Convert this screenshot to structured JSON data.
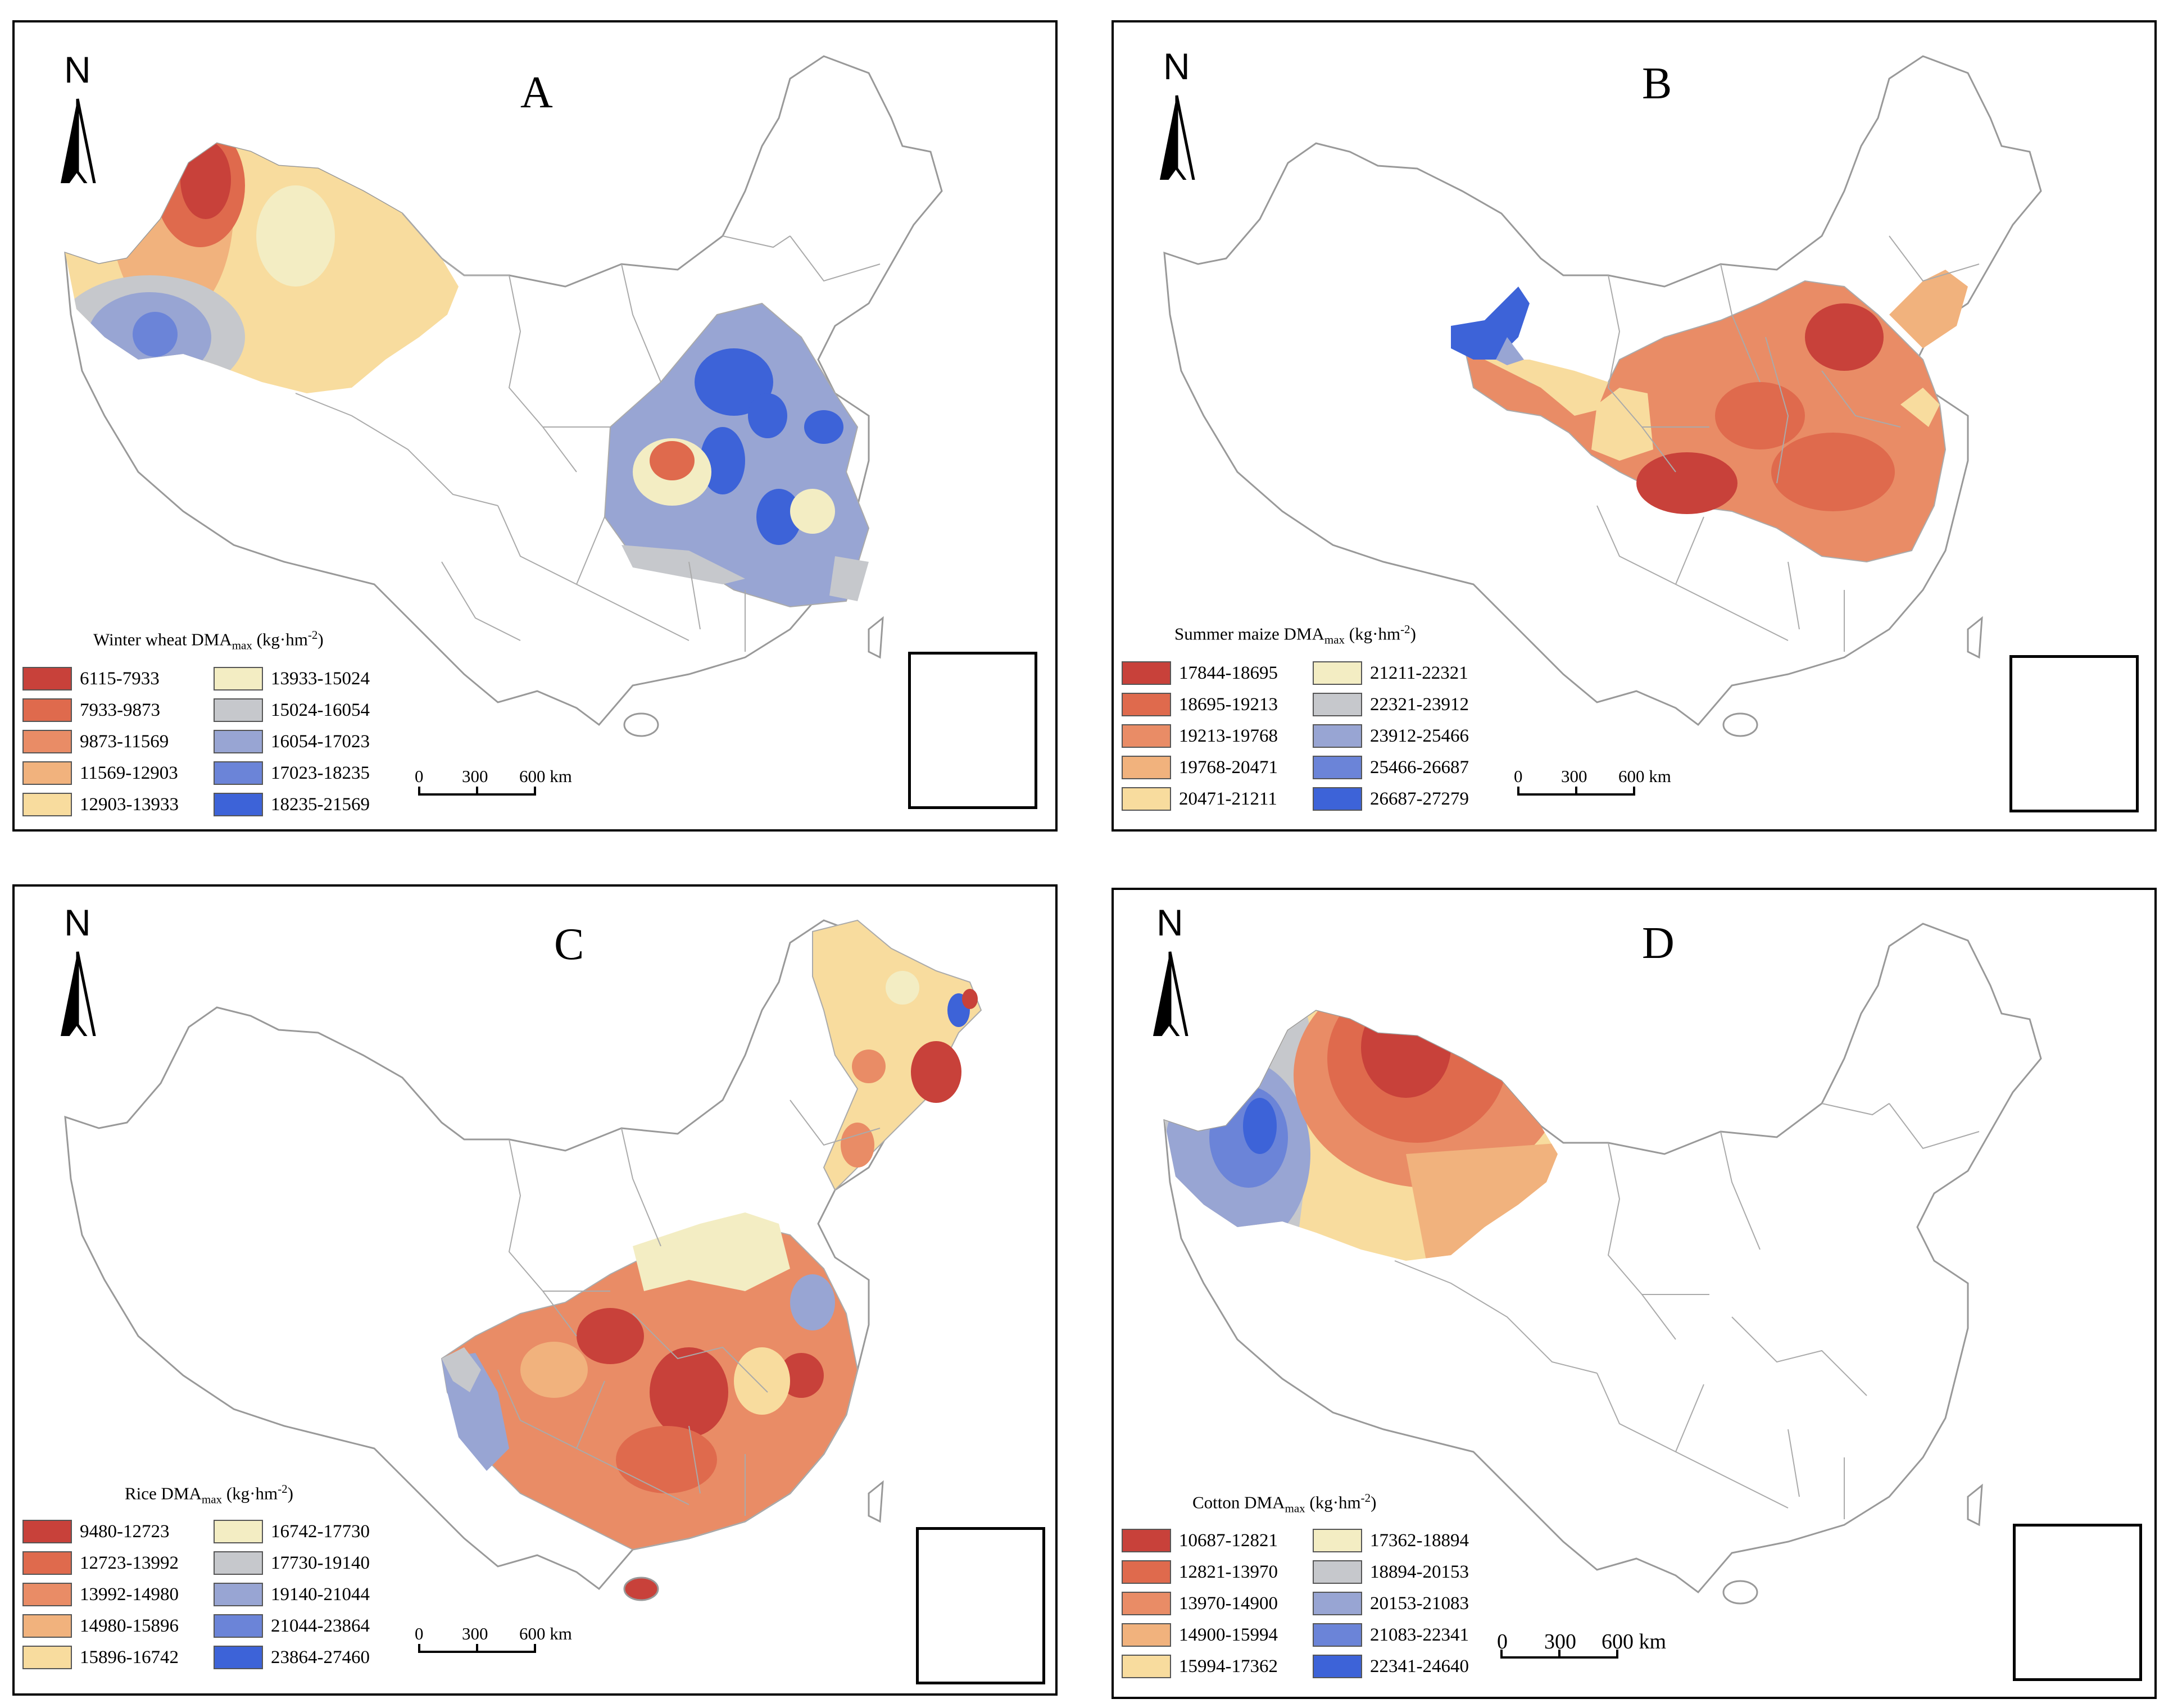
{
  "panels": [
    {
      "letter": "A",
      "north": "N",
      "legend_title_main": "Winter wheat DMA",
      "legend_title_sub": "max",
      "legend_unit_pre": " (kg·hm",
      "legend_unit_sup": "-2",
      "legend_unit_post": ")",
      "legend": [
        {
          "label": "6115-7933",
          "color": "#c8413a"
        },
        {
          "label": "13933-15024",
          "color": "#f3edc3"
        },
        {
          "label": "7933-9873",
          "color": "#df6a4d"
        },
        {
          "label": "15024-16054",
          "color": "#c6c8cc"
        },
        {
          "label": "9873-11569",
          "color": "#e98c66"
        },
        {
          "label": "16054-17023",
          "color": "#98a5d3"
        },
        {
          "label": "11569-12903",
          "color": "#f1b27d"
        },
        {
          "label": "17023-18235",
          "color": "#6b84d8"
        },
        {
          "label": "12903-13933",
          "color": "#f8dc9e"
        },
        {
          "label": "18235-21569",
          "color": "#3d63d8"
        }
      ],
      "scale": {
        "t0": "0",
        "t1": "300",
        "t2": "600 km"
      }
    },
    {
      "letter": "B",
      "north": "N",
      "legend_title_main": "Summer maize  DMA",
      "legend_title_sub": "max",
      "legend_unit_pre": " (kg·hm",
      "legend_unit_sup": "-2",
      "legend_unit_post": ")",
      "legend": [
        {
          "label": "17844-18695",
          "color": "#c8413a"
        },
        {
          "label": "21211-22321",
          "color": "#f3edc3"
        },
        {
          "label": "18695-19213",
          "color": "#df6a4d"
        },
        {
          "label": "22321-23912",
          "color": "#c6c8cc"
        },
        {
          "label": "19213-19768",
          "color": "#e98c66"
        },
        {
          "label": "23912-25466",
          "color": "#98a5d3"
        },
        {
          "label": "19768-20471",
          "color": "#f1b27d"
        },
        {
          "label": "25466-26687",
          "color": "#6b84d8"
        },
        {
          "label": "20471-21211",
          "color": "#f8dc9e"
        },
        {
          "label": "26687-27279",
          "color": "#3d63d8"
        }
      ],
      "scale": {
        "t0": "0",
        "t1": "300",
        "t2": "600 km"
      }
    },
    {
      "letter": "C",
      "north": "N",
      "legend_title_main": "Rice DMA",
      "legend_title_sub": "max",
      "legend_unit_pre": " (kg·hm",
      "legend_unit_sup": "-2",
      "legend_unit_post": ")",
      "legend": [
        {
          "label": "9480-12723",
          "color": "#c8413a"
        },
        {
          "label": "16742-17730",
          "color": "#f3edc3"
        },
        {
          "label": "12723-13992",
          "color": "#df6a4d"
        },
        {
          "label": "17730-19140",
          "color": "#c6c8cc"
        },
        {
          "label": "13992-14980",
          "color": "#e98c66"
        },
        {
          "label": "19140-21044",
          "color": "#98a5d3"
        },
        {
          "label": "14980-15896",
          "color": "#f1b27d"
        },
        {
          "label": "21044-23864",
          "color": "#6b84d8"
        },
        {
          "label": "15896-16742",
          "color": "#f8dc9e"
        },
        {
          "label": "23864-27460",
          "color": "#3d63d8"
        }
      ],
      "scale": {
        "t0": "0",
        "t1": "300",
        "t2": "600 km"
      }
    },
    {
      "letter": "D",
      "north": "N",
      "legend_title_main": "Cotton  DMA",
      "legend_title_sub": "max",
      "legend_unit_pre": " (kg·hm",
      "legend_unit_sup": "-2",
      "legend_unit_post": ")",
      "legend": [
        {
          "label": "10687-12821",
          "color": "#c8413a"
        },
        {
          "label": "17362-18894",
          "color": "#f3edc3"
        },
        {
          "label": "12821-13970",
          "color": "#df6a4d"
        },
        {
          "label": "18894-20153",
          "color": "#c6c8cc"
        },
        {
          "label": "13970-14900",
          "color": "#e98c66"
        },
        {
          "label": "20153-21083",
          "color": "#98a5d3"
        },
        {
          "label": "14900-15994",
          "color": "#f1b27d"
        },
        {
          "label": "21083-22341",
          "color": "#6b84d8"
        },
        {
          "label": "15994-17362",
          "color": "#f8dc9e"
        },
        {
          "label": "22341-24640",
          "color": "#3d63d8"
        }
      ],
      "scale": {
        "t0": "0",
        "t1": "300",
        "t2": "600 km"
      }
    }
  ]
}
